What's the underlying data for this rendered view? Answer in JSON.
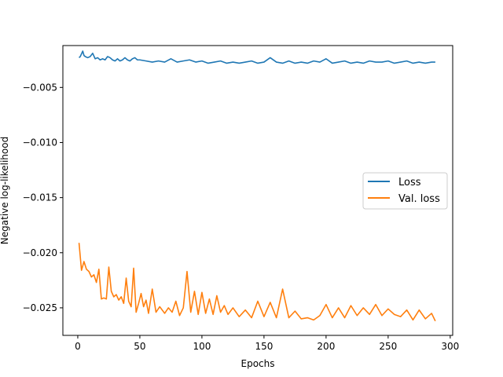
{
  "chart_data": {
    "type": "line",
    "title": "",
    "xlabel": "Epochs",
    "ylabel": "Negative log-likelihood",
    "xlim": [
      -12,
      302
    ],
    "ylim": [
      -0.0275,
      -0.0012
    ],
    "xticks": [
      0,
      50,
      100,
      150,
      200,
      250,
      300
    ],
    "xtick_labels": [
      "0",
      "50",
      "100",
      "150",
      "200",
      "250",
      "300"
    ],
    "yticks": [
      -0.025,
      -0.02,
      -0.015,
      -0.01,
      -0.005
    ],
    "ytick_labels": [
      "−0.025",
      "−0.020",
      "−0.015",
      "−0.010",
      "−0.005"
    ],
    "grid": false,
    "legend_position": "center-right",
    "series": [
      {
        "name": "Loss",
        "color": "#1f77b4",
        "x": [
          1,
          2,
          4,
          5,
          6,
          8,
          10,
          12,
          14,
          16,
          18,
          20,
          22,
          24,
          26,
          28,
          30,
          32,
          34,
          36,
          38,
          40,
          42,
          44,
          46,
          48,
          50,
          55,
          60,
          65,
          70,
          75,
          80,
          85,
          90,
          95,
          100,
          105,
          110,
          115,
          120,
          125,
          130,
          135,
          140,
          145,
          150,
          155,
          160,
          165,
          170,
          175,
          180,
          185,
          190,
          195,
          200,
          205,
          210,
          215,
          220,
          225,
          230,
          235,
          240,
          245,
          250,
          255,
          260,
          265,
          270,
          275,
          280,
          285,
          288
        ],
        "values": [
          -0.0023,
          -0.0022,
          -0.0017,
          -0.0021,
          -0.0022,
          -0.0023,
          -0.0022,
          -0.0019,
          -0.0024,
          -0.0023,
          -0.0025,
          -0.0024,
          -0.0025,
          -0.0022,
          -0.0023,
          -0.0025,
          -0.0026,
          -0.0024,
          -0.0026,
          -0.0025,
          -0.0023,
          -0.0025,
          -0.0026,
          -0.0024,
          -0.0023,
          -0.0025,
          -0.0025,
          -0.0026,
          -0.0027,
          -0.0026,
          -0.0027,
          -0.0024,
          -0.0027,
          -0.0026,
          -0.0025,
          -0.0027,
          -0.0026,
          -0.0028,
          -0.0027,
          -0.0026,
          -0.0028,
          -0.0027,
          -0.0028,
          -0.0027,
          -0.0026,
          -0.0028,
          -0.0027,
          -0.0023,
          -0.0027,
          -0.0028,
          -0.0026,
          -0.0028,
          -0.0027,
          -0.0028,
          -0.0026,
          -0.0027,
          -0.0024,
          -0.0028,
          -0.0027,
          -0.0026,
          -0.0028,
          -0.0027,
          -0.0028,
          -0.0026,
          -0.0027,
          -0.0027,
          -0.0026,
          -0.0028,
          -0.0027,
          -0.0026,
          -0.0028,
          -0.0027,
          -0.0028,
          -0.0027,
          -0.0027
        ]
      },
      {
        "name": "Val. loss",
        "color": "#ff7f0e",
        "x": [
          1,
          3,
          5,
          7,
          9,
          11,
          13,
          15,
          17,
          19,
          21,
          23,
          25,
          27,
          29,
          31,
          33,
          35,
          37,
          39,
          41,
          43,
          45,
          47,
          49,
          51,
          53,
          55,
          57,
          60,
          63,
          66,
          70,
          73,
          76,
          79,
          82,
          85,
          88,
          91,
          94,
          97,
          100,
          103,
          106,
          109,
          112,
          115,
          118,
          121,
          125,
          130,
          135,
          140,
          145,
          150,
          155,
          160,
          165,
          170,
          175,
          180,
          185,
          190,
          195,
          200,
          205,
          210,
          215,
          220,
          225,
          230,
          235,
          240,
          245,
          250,
          255,
          260,
          265,
          270,
          275,
          280,
          285,
          288
        ],
        "values": [
          -0.0191,
          -0.0216,
          -0.0208,
          -0.0215,
          -0.0217,
          -0.0222,
          -0.022,
          -0.0227,
          -0.0215,
          -0.0242,
          -0.0241,
          -0.0242,
          -0.0213,
          -0.0235,
          -0.024,
          -0.0238,
          -0.0243,
          -0.024,
          -0.0246,
          -0.0223,
          -0.0244,
          -0.0249,
          -0.0214,
          -0.0254,
          -0.0246,
          -0.0237,
          -0.0249,
          -0.0243,
          -0.0255,
          -0.0233,
          -0.0254,
          -0.0249,
          -0.0255,
          -0.025,
          -0.0254,
          -0.0244,
          -0.0257,
          -0.025,
          -0.0217,
          -0.0254,
          -0.0235,
          -0.0256,
          -0.0236,
          -0.0255,
          -0.0242,
          -0.0256,
          -0.0239,
          -0.0254,
          -0.0248,
          -0.0256,
          -0.025,
          -0.0258,
          -0.0252,
          -0.0259,
          -0.0244,
          -0.0258,
          -0.0245,
          -0.0259,
          -0.0233,
          -0.0259,
          -0.0253,
          -0.026,
          -0.0259,
          -0.0261,
          -0.0257,
          -0.0247,
          -0.0259,
          -0.025,
          -0.0259,
          -0.0248,
          -0.0257,
          -0.025,
          -0.0256,
          -0.0247,
          -0.0257,
          -0.0251,
          -0.0256,
          -0.0258,
          -0.0252,
          -0.0261,
          -0.0252,
          -0.026,
          -0.0255,
          -0.0262
        ]
      }
    ]
  }
}
